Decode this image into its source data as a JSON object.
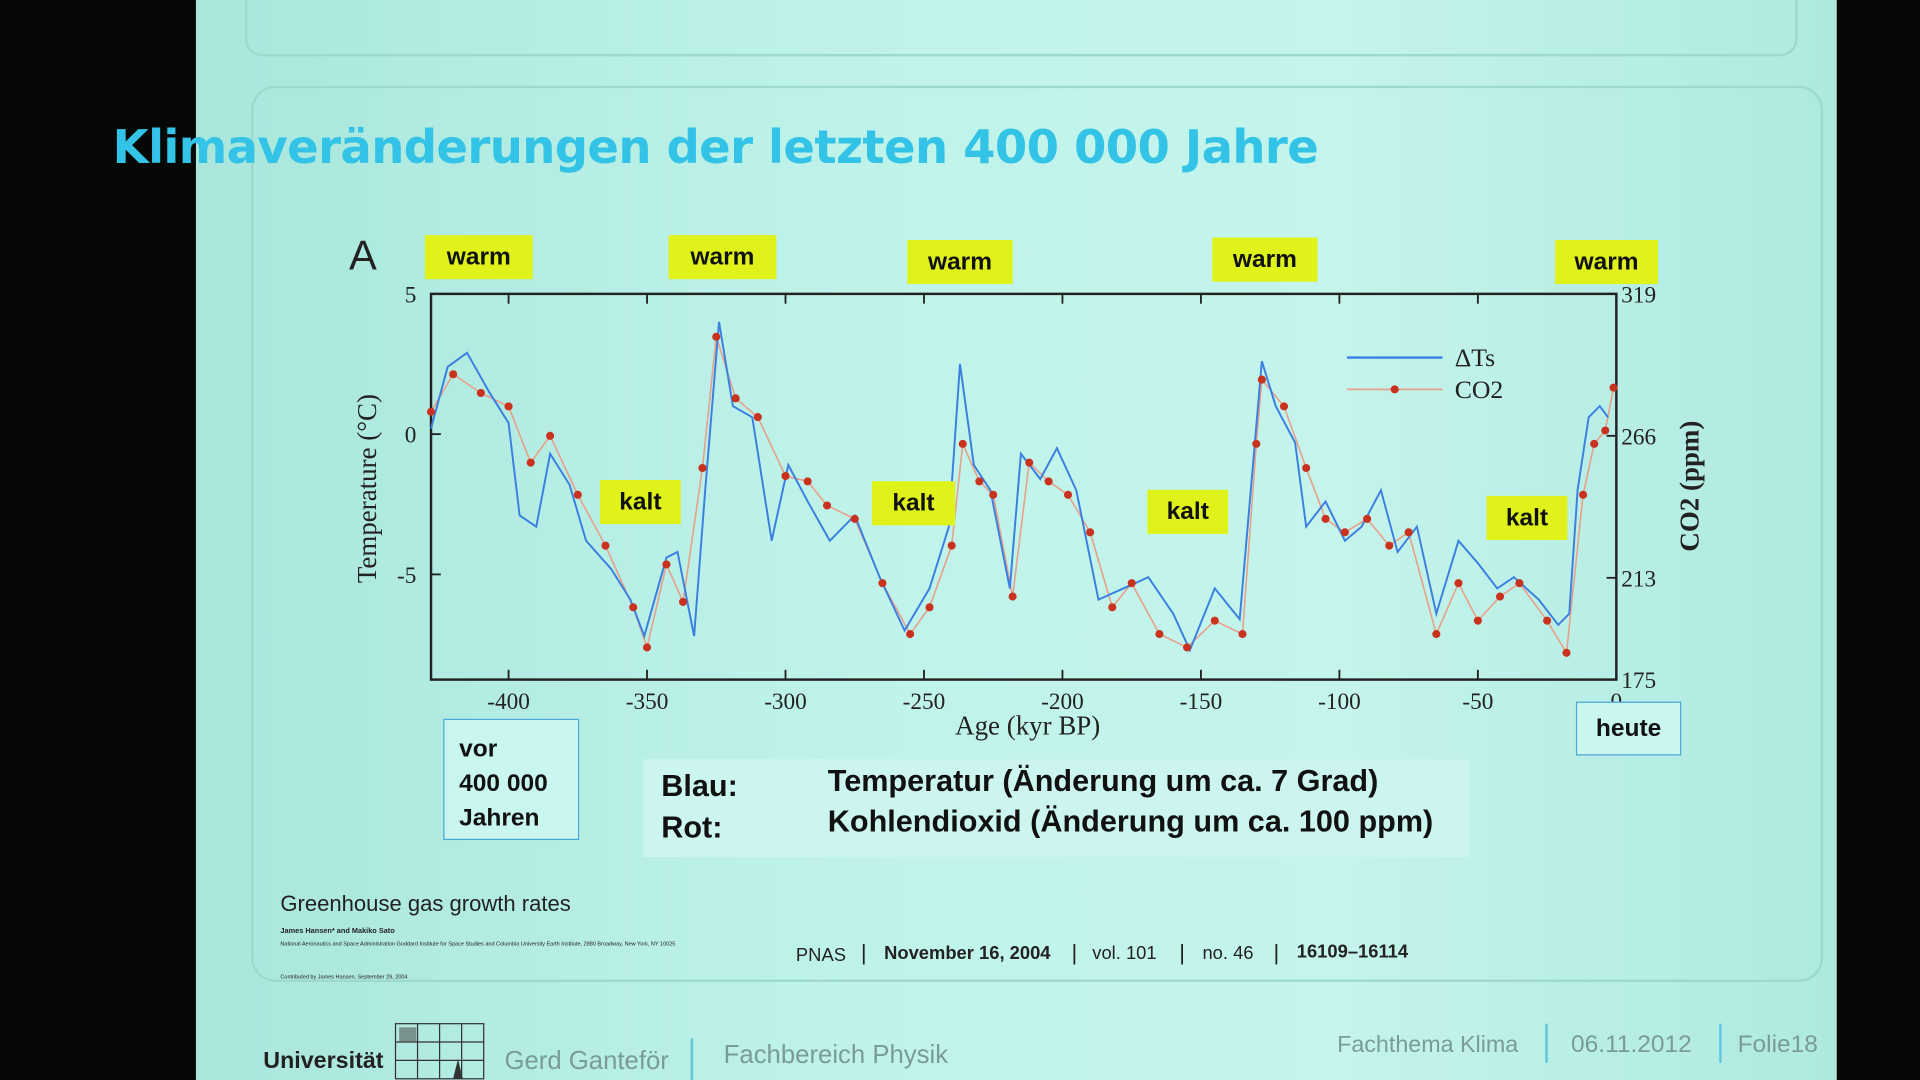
{
  "slide": {
    "title": "Klimaveränderungen der letzten 400 000 Jahre",
    "panel_letter": "A",
    "warm_labels": [
      "warm",
      "warm",
      "warm",
      "warm",
      "warm"
    ],
    "kalt_labels": [
      "kalt",
      "kalt",
      "kalt",
      "kalt"
    ],
    "left_box": [
      "vor",
      "400 000",
      "Jahren"
    ],
    "right_box": "heute",
    "notes": [
      {
        "key": "Blau:",
        "text": "Temperatur (Änderung um ca. 7 Grad)"
      },
      {
        "key": "Rot:",
        "text": "Kohlendioxid (Änderung um ca. 100 ppm)"
      }
    ],
    "citation": {
      "title": "Greenhouse gas growth rates",
      "authors": "James Hansen* and Makiko Sato",
      "affiliation": "National Aeronautics and Space Administration Goddard Institute for Space Studies and Columbia University Earth Institute, 2880 Broadway, New York, NY 10025",
      "contributed": "Contributed by James Hansen, September 29, 2004",
      "journal": "PNAS",
      "date": "November 16, 2004",
      "volume": "vol. 101",
      "number": "no. 46",
      "pages": "16109–16114"
    },
    "footer": {
      "university": "Universität",
      "author": "Gerd Ganteför",
      "department": "Fachbereich Physik",
      "topic": "Fachthema Klima",
      "date": "06.11.2012",
      "slide_no": "Folie18"
    },
    "colors": {
      "title": "#33c3e6",
      "tag": "#dff21a",
      "temperature": "#3b7fe0",
      "co2": "#c8321e"
    }
  },
  "chart_data": {
    "type": "line",
    "xlabel": "Age (kyr BP)",
    "ylabel": "Temperature (°C)",
    "y2label": "CO2 (ppm)",
    "xlim": [
      -428,
      0
    ],
    "ylim": [
      -8.75,
      5
    ],
    "y2lim": [
      175,
      319
    ],
    "xticks": [
      -400,
      -350,
      -300,
      -250,
      -200,
      -150,
      -100,
      -50,
      0
    ],
    "xtick_labels": [
      "-400",
      "-350",
      "-300",
      "-250",
      "-200",
      "-150",
      "-100",
      "-50",
      "0"
    ],
    "yticks": [
      5,
      0,
      -5
    ],
    "ytick_labels": [
      "5",
      "0",
      "-5"
    ],
    "y2ticks": [
      319,
      266,
      213,
      175
    ],
    "y2tick_labels": [
      "319",
      "266",
      "213",
      "175"
    ],
    "legend_position": "top-right",
    "series": [
      {
        "name": "ΔTs",
        "axis": "left",
        "style": "line",
        "x": [
          -428,
          -422,
          -415,
          -407,
          -400,
          -396,
          -390,
          -385,
          -378,
          -372,
          -363,
          -356,
          -351,
          -343,
          -339,
          -333,
          -329,
          -324,
          -319,
          -312,
          -305,
          -299,
          -292,
          -284,
          -275,
          -266,
          -257,
          -248,
          -241,
          -237,
          -232,
          -226,
          -219,
          -215,
          -208,
          -202,
          -195,
          -187,
          -178,
          -169,
          -160,
          -154,
          -145,
          -136,
          -132,
          -128,
          -123,
          -116,
          -112,
          -105,
          -98,
          -92,
          -85,
          -79,
          -72,
          -65,
          -57,
          -50,
          -43,
          -37,
          -28,
          -21,
          -17,
          -14,
          -10,
          -6,
          -3
        ],
        "y": [
          0.2,
          2.4,
          2.9,
          1.5,
          0.4,
          -2.9,
          -3.3,
          -0.7,
          -1.8,
          -3.8,
          -4.8,
          -5.9,
          -7.2,
          -4.4,
          -4.2,
          -7.2,
          -2.0,
          4.0,
          1.0,
          0.6,
          -3.8,
          -1.1,
          -2.4,
          -3.8,
          -2.9,
          -5.1,
          -7.0,
          -5.5,
          -3.3,
          2.5,
          -1.1,
          -2.0,
          -5.5,
          -0.7,
          -1.6,
          -0.5,
          -2.0,
          -5.9,
          -5.5,
          -5.1,
          -6.4,
          -7.7,
          -5.5,
          -6.6,
          -2.0,
          2.6,
          1.0,
          -0.3,
          -3.3,
          -2.4,
          -3.8,
          -3.3,
          -2.0,
          -4.2,
          -3.3,
          -6.4,
          -3.8,
          -4.6,
          -5.5,
          -5.1,
          -5.9,
          -6.8,
          -6.4,
          -2.0,
          0.6,
          1.0,
          0.6
        ]
      },
      {
        "name": "CO2",
        "axis": "right",
        "style": "line+dots",
        "x": [
          -428,
          -420,
          -410,
          -400,
          -392,
          -385,
          -375,
          -365,
          -355,
          -350,
          -343,
          -337,
          -330,
          -325,
          -318,
          -310,
          -300,
          -292,
          -285,
          -275,
          -265,
          -255,
          -248,
          -240,
          -236,
          -230,
          -225,
          -218,
          -212,
          -205,
          -198,
          -190,
          -182,
          -175,
          -165,
          -155,
          -145,
          -135,
          -130,
          -128,
          -120,
          -112,
          -105,
          -98,
          -90,
          -82,
          -75,
          -65,
          -57,
          -50,
          -42,
          -35,
          -25,
          -18,
          -12,
          -8,
          -4,
          -1
        ],
        "y": [
          275,
          289,
          282,
          277,
          256,
          266,
          244,
          225,
          202,
          187,
          218,
          204,
          254,
          303,
          280,
          273,
          251,
          249,
          240,
          235,
          211,
          192,
          202,
          225,
          263,
          249,
          244,
          206,
          256,
          249,
          244,
          230,
          202,
          211,
          192,
          187,
          197,
          192,
          263,
          287,
          277,
          254,
          235,
          230,
          235,
          225,
          230,
          192,
          211,
          197,
          206,
          211,
          197,
          185,
          244,
          263,
          268,
          284
        ]
      }
    ]
  }
}
